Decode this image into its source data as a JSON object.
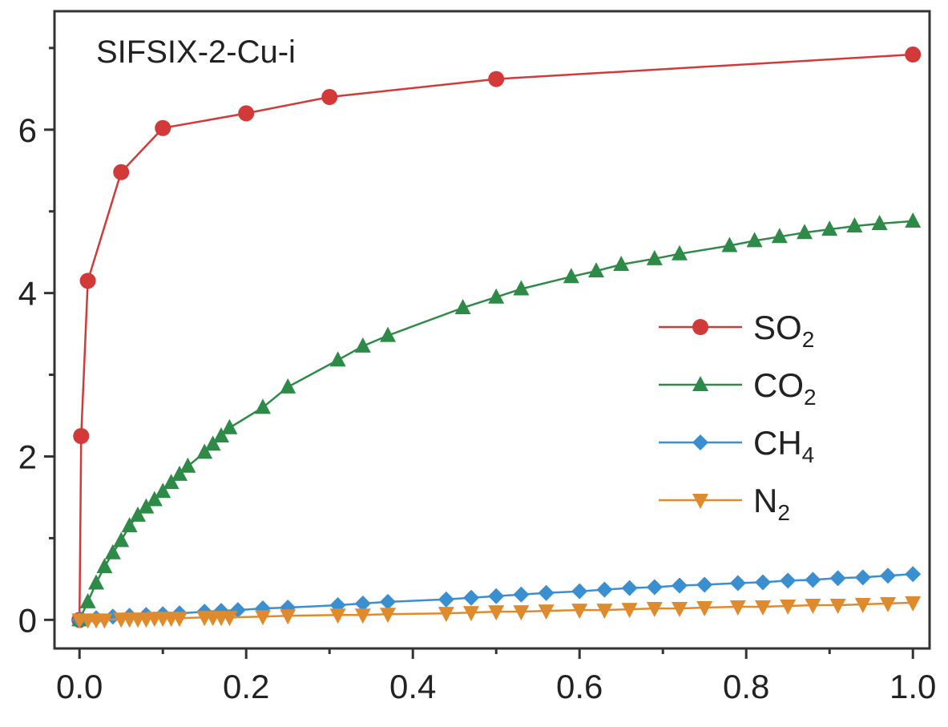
{
  "chart_data": {
    "type": "line",
    "title": "SIFSIX-2-Cu-i",
    "xlabel": "",
    "ylabel": "",
    "xlim": [
      -0.03,
      1.02
    ],
    "ylim": [
      -0.35,
      7.45
    ],
    "xticks": [
      "0.0",
      "0.2",
      "0.4",
      "0.6",
      "0.8",
      "1.0"
    ],
    "yticks": [
      "0",
      "2",
      "4",
      "6"
    ],
    "grid": false,
    "legend_position": "center-right",
    "series": [
      {
        "name": "SO2",
        "name_main": "SO",
        "name_sub": "2",
        "color": "#d23a3a",
        "marker": "circle",
        "x": [
          0.0,
          0.002,
          0.01,
          0.05,
          0.1,
          0.2,
          0.3,
          0.5,
          1.0
        ],
        "y": [
          0.0,
          2.25,
          4.15,
          5.48,
          6.02,
          6.2,
          6.4,
          6.62,
          6.92
        ]
      },
      {
        "name": "CO2",
        "name_main": "CO",
        "name_sub": "2",
        "color": "#2e8b47",
        "marker": "triangle-up",
        "x": [
          0.0,
          0.01,
          0.02,
          0.03,
          0.04,
          0.05,
          0.06,
          0.07,
          0.08,
          0.09,
          0.1,
          0.11,
          0.12,
          0.13,
          0.15,
          0.16,
          0.17,
          0.18,
          0.22,
          0.25,
          0.31,
          0.34,
          0.37,
          0.46,
          0.5,
          0.53,
          0.59,
          0.62,
          0.65,
          0.69,
          0.72,
          0.78,
          0.81,
          0.84,
          0.87,
          0.9,
          0.93,
          0.96,
          1.0
        ],
        "y": [
          0.0,
          0.22,
          0.45,
          0.65,
          0.82,
          0.97,
          1.15,
          1.28,
          1.38,
          1.47,
          1.57,
          1.68,
          1.78,
          1.88,
          2.05,
          2.15,
          2.25,
          2.35,
          2.6,
          2.85,
          3.18,
          3.35,
          3.48,
          3.82,
          3.95,
          4.05,
          4.2,
          4.27,
          4.35,
          4.42,
          4.48,
          4.58,
          4.64,
          4.69,
          4.74,
          4.78,
          4.82,
          4.85,
          4.88
        ]
      },
      {
        "name": "CH4",
        "name_main": "CH",
        "name_sub": "4",
        "color": "#3a8fd0",
        "marker": "diamond",
        "x": [
          0.0,
          0.02,
          0.04,
          0.06,
          0.08,
          0.1,
          0.12,
          0.15,
          0.17,
          0.19,
          0.22,
          0.25,
          0.31,
          0.34,
          0.37,
          0.44,
          0.47,
          0.5,
          0.53,
          0.56,
          0.6,
          0.63,
          0.66,
          0.69,
          0.72,
          0.75,
          0.79,
          0.82,
          0.85,
          0.88,
          0.91,
          0.94,
          0.97,
          1.0
        ],
        "y": [
          0.0,
          0.02,
          0.04,
          0.05,
          0.06,
          0.07,
          0.08,
          0.1,
          0.11,
          0.12,
          0.14,
          0.15,
          0.18,
          0.2,
          0.22,
          0.25,
          0.27,
          0.29,
          0.31,
          0.33,
          0.35,
          0.37,
          0.39,
          0.4,
          0.42,
          0.43,
          0.45,
          0.46,
          0.48,
          0.49,
          0.51,
          0.52,
          0.54,
          0.56
        ]
      },
      {
        "name": "N2",
        "name_main": "N",
        "name_sub": "2",
        "color": "#e08a2e",
        "marker": "triangle-down",
        "x": [
          0.0,
          0.01,
          0.02,
          0.03,
          0.05,
          0.06,
          0.07,
          0.08,
          0.09,
          0.1,
          0.11,
          0.12,
          0.15,
          0.16,
          0.17,
          0.18,
          0.22,
          0.25,
          0.31,
          0.34,
          0.37,
          0.44,
          0.47,
          0.5,
          0.53,
          0.56,
          0.6,
          0.63,
          0.66,
          0.69,
          0.72,
          0.75,
          0.79,
          0.82,
          0.85,
          0.88,
          0.91,
          0.94,
          0.97,
          1.0
        ],
        "y": [
          0.0,
          0.0,
          0.0,
          0.0,
          0.01,
          0.01,
          0.01,
          0.01,
          0.02,
          0.02,
          0.02,
          0.02,
          0.03,
          0.03,
          0.03,
          0.03,
          0.04,
          0.05,
          0.06,
          0.06,
          0.07,
          0.08,
          0.09,
          0.1,
          0.1,
          0.11,
          0.12,
          0.12,
          0.13,
          0.14,
          0.14,
          0.15,
          0.16,
          0.16,
          0.17,
          0.18,
          0.18,
          0.19,
          0.2,
          0.21
        ]
      }
    ]
  }
}
